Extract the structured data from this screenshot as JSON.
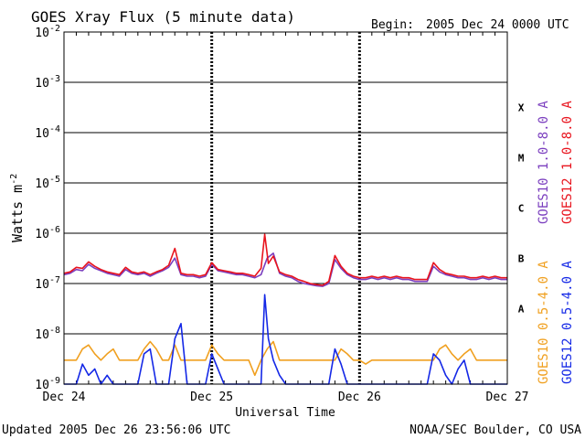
{
  "chart_data": {
    "type": "line",
    "title": "GOES Xray Flux (5 minute data)",
    "begin_label": "Begin:",
    "begin_value": "2005 Dec 24 0000 UTC",
    "ylabel_main": "Watts m",
    "ylabel_sup": "-2",
    "xlabel": "Universal Time",
    "y_scale": "log",
    "ylim": [
      1e-09,
      0.01
    ],
    "y_ticks": [
      {
        "base": "10",
        "exp": "-2"
      },
      {
        "base": "10",
        "exp": "-3"
      },
      {
        "base": "10",
        "exp": "-4"
      },
      {
        "base": "10",
        "exp": "-5"
      },
      {
        "base": "10",
        "exp": "-6"
      },
      {
        "base": "10",
        "exp": "-7"
      },
      {
        "base": "10",
        "exp": "-8"
      },
      {
        "base": "10",
        "exp": "-9"
      }
    ],
    "x_ticks": [
      "Dec 24",
      "Dec 25",
      "Dec 26",
      "Dec 27"
    ],
    "xlim_hours": [
      0,
      72
    ],
    "flare_classes": [
      "X",
      "M",
      "C",
      "B",
      "A"
    ],
    "grid": true,
    "series": [
      {
        "name": "GOES10 1.0-8.0 A",
        "color": "#7b3fbf",
        "x": [
          0,
          1,
          2,
          3,
          4,
          5,
          6,
          7,
          8,
          9,
          10,
          11,
          12,
          13,
          14,
          15,
          16,
          17,
          18,
          19,
          20,
          21,
          22,
          23,
          24,
          25,
          26,
          27,
          28,
          29,
          30,
          31,
          32,
          33,
          34,
          35,
          36,
          37,
          38,
          39,
          40,
          41,
          42,
          43,
          44,
          45,
          46,
          47,
          48,
          49,
          50,
          51,
          52,
          53,
          54,
          55,
          56,
          57,
          58,
          59,
          60,
          61,
          62,
          63,
          64,
          65,
          66,
          67,
          68,
          69,
          70,
          71,
          72
        ],
        "y": [
          1.5e-07,
          1.6e-07,
          1.9e-07,
          1.8e-07,
          2.4e-07,
          2e-07,
          1.8e-07,
          1.6e-07,
          1.5e-07,
          1.4e-07,
          1.9e-07,
          1.6e-07,
          1.5e-07,
          1.6e-07,
          1.4e-07,
          1.6e-07,
          1.8e-07,
          2.1e-07,
          3.2e-07,
          1.5e-07,
          1.4e-07,
          1.4e-07,
          1.3e-07,
          1.4e-07,
          2.4e-07,
          1.8e-07,
          1.7e-07,
          1.6e-07,
          1.5e-07,
          1.5e-07,
          1.4e-07,
          1.3e-07,
          1.5e-07,
          3.2e-07,
          4e-07,
          1.6e-07,
          1.4e-07,
          1.3e-07,
          1.1e-07,
          1e-07,
          9.5e-08,
          9e-08,
          8.8e-08,
          1e-07,
          3e-07,
          2e-07,
          1.5e-07,
          1.3e-07,
          1.2e-07,
          1.2e-07,
          1.3e-07,
          1.2e-07,
          1.3e-07,
          1.2e-07,
          1.3e-07,
          1.2e-07,
          1.2e-07,
          1.1e-07,
          1.1e-07,
          1.1e-07,
          2.2e-07,
          1.7e-07,
          1.5e-07,
          1.4e-07,
          1.3e-07,
          1.3e-07,
          1.2e-07,
          1.2e-07,
          1.3e-07,
          1.2e-07,
          1.3e-07,
          1.2e-07,
          1.2e-07
        ]
      },
      {
        "name": "GOES12 1.0-8.0 A",
        "color": "#e8141e",
        "x": [
          0,
          1,
          2,
          3,
          4,
          5,
          6,
          7,
          8,
          9,
          10,
          11,
          12,
          13,
          14,
          15,
          16,
          17,
          18,
          19,
          20,
          21,
          22,
          23,
          24,
          25,
          26,
          27,
          28,
          29,
          30,
          31,
          32,
          32.6,
          33.2,
          34,
          35,
          36,
          37,
          38,
          39,
          40,
          41,
          42,
          43,
          44,
          45,
          46,
          47,
          48,
          49,
          50,
          51,
          52,
          53,
          54,
          55,
          56,
          57,
          58,
          59,
          60,
          61,
          62,
          63,
          64,
          65,
          66,
          67,
          68,
          69,
          70,
          71,
          72
        ],
        "y": [
          1.6e-07,
          1.7e-07,
          2.1e-07,
          2e-07,
          2.7e-07,
          2.2e-07,
          1.9e-07,
          1.7e-07,
          1.6e-07,
          1.5e-07,
          2.1e-07,
          1.7e-07,
          1.6e-07,
          1.7e-07,
          1.5e-07,
          1.7e-07,
          1.9e-07,
          2.3e-07,
          5e-07,
          1.6e-07,
          1.5e-07,
          1.5e-07,
          1.4e-07,
          1.5e-07,
          2.6e-07,
          1.9e-07,
          1.8e-07,
          1.7e-07,
          1.6e-07,
          1.6e-07,
          1.5e-07,
          1.4e-07,
          2e-07,
          9.5e-07,
          2.5e-07,
          3.5e-07,
          1.7e-07,
          1.5e-07,
          1.4e-07,
          1.2e-07,
          1.1e-07,
          1e-07,
          9.5e-08,
          9.2e-08,
          1.1e-07,
          3.6e-07,
          2.2e-07,
          1.6e-07,
          1.4e-07,
          1.3e-07,
          1.3e-07,
          1.4e-07,
          1.3e-07,
          1.4e-07,
          1.3e-07,
          1.4e-07,
          1.3e-07,
          1.3e-07,
          1.2e-07,
          1.2e-07,
          1.2e-07,
          2.6e-07,
          1.9e-07,
          1.6e-07,
          1.5e-07,
          1.4e-07,
          1.4e-07,
          1.3e-07,
          1.3e-07,
          1.4e-07,
          1.3e-07,
          1.4e-07,
          1.3e-07,
          1.3e-07
        ]
      },
      {
        "name": "GOES10 0.5-4.0 A",
        "color": "#f0a020",
        "x": [
          0,
          2,
          3,
          4,
          5,
          6,
          7,
          8,
          9,
          10,
          11,
          12,
          13,
          14,
          15,
          16,
          17,
          18,
          19,
          20,
          21,
          22,
          23,
          24,
          25,
          26,
          27,
          28,
          29,
          30,
          31,
          32,
          33,
          34,
          35,
          36,
          37,
          38,
          39,
          40,
          41,
          42,
          43,
          44,
          45,
          46,
          47,
          48,
          49,
          50,
          51,
          52,
          53,
          54,
          55,
          56,
          57,
          58,
          59,
          60,
          61,
          62,
          63,
          64,
          65,
          66,
          67,
          68,
          69,
          70,
          71,
          72
        ],
        "y": [
          3e-09,
          3e-09,
          5e-09,
          6e-09,
          4e-09,
          3e-09,
          4e-09,
          5e-09,
          3e-09,
          3e-09,
          3e-09,
          3e-09,
          5e-09,
          7e-09,
          5e-09,
          3e-09,
          3e-09,
          6e-09,
          3e-09,
          3e-09,
          3e-09,
          3e-09,
          3e-09,
          6e-09,
          4e-09,
          3e-09,
          3e-09,
          3e-09,
          3e-09,
          3e-09,
          1.5e-09,
          3e-09,
          5e-09,
          7e-09,
          3e-09,
          3e-09,
          3e-09,
          3e-09,
          3e-09,
          3e-09,
          3e-09,
          3e-09,
          3e-09,
          3e-09,
          5e-09,
          4e-09,
          3e-09,
          3e-09,
          2.5e-09,
          3e-09,
          3e-09,
          3e-09,
          3e-09,
          3e-09,
          3e-09,
          3e-09,
          3e-09,
          3e-09,
          3e-09,
          3e-09,
          5e-09,
          6e-09,
          4e-09,
          3e-09,
          4e-09,
          5e-09,
          3e-09,
          3e-09,
          3e-09,
          3e-09,
          3e-09,
          3e-09
        ]
      },
      {
        "name": "GOES12 0.5-4.0 A",
        "color": "#1428e6",
        "x": [
          0,
          2,
          3,
          4,
          5,
          6,
          7,
          8,
          9,
          10,
          11,
          12,
          13,
          14,
          15,
          16,
          17,
          18,
          19,
          20,
          21,
          22,
          23,
          24,
          25,
          26,
          27,
          28,
          29,
          30,
          31,
          32,
          32.6,
          33.2,
          34,
          35,
          36,
          37,
          38,
          39,
          40,
          41,
          42,
          43,
          44,
          45,
          46,
          47,
          48,
          49,
          50,
          51,
          52,
          53,
          54,
          55,
          56,
          57,
          58,
          59,
          60,
          61,
          62,
          63,
          64,
          65,
          66,
          67,
          68,
          69,
          70,
          71,
          72
        ],
        "y": [
          1e-09,
          1e-09,
          2.5e-09,
          1.5e-09,
          2e-09,
          1e-09,
          1.5e-09,
          1e-09,
          1e-09,
          1e-09,
          1e-09,
          1e-09,
          4e-09,
          5e-09,
          1e-09,
          1e-09,
          1e-09,
          8e-09,
          1.6e-08,
          1e-09,
          1e-09,
          1e-09,
          1e-09,
          4e-09,
          2e-09,
          1e-09,
          1e-09,
          1e-09,
          1e-09,
          1e-09,
          1e-09,
          1e-09,
          6e-08,
          8e-09,
          3e-09,
          1.5e-09,
          1e-09,
          1e-09,
          1e-09,
          1e-09,
          1e-09,
          1e-09,
          1e-09,
          1e-09,
          5e-09,
          2.5e-09,
          1e-09,
          1e-09,
          1e-09,
          1e-09,
          1e-09,
          1e-09,
          1e-09,
          1e-09,
          1e-09,
          1e-09,
          1e-09,
          1e-09,
          1e-09,
          1e-09,
          4e-09,
          3e-09,
          1.5e-09,
          1e-09,
          2e-09,
          3e-09,
          1e-09,
          1e-09,
          1e-09,
          1e-09,
          1e-09,
          1e-09,
          1e-09
        ]
      }
    ]
  },
  "footer": {
    "updated": "Updated 2005 Dec 26 23:56:06 UTC",
    "credit": "NOAA/SEC Boulder, CO USA"
  }
}
